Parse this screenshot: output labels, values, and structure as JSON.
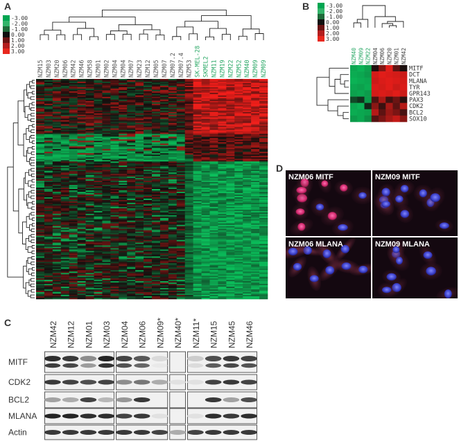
{
  "panels": {
    "A": {
      "letter": "A",
      "legend": {
        "labels": [
          "-3.00",
          "-2.00",
          "-1.00",
          "0.00",
          "1.00",
          "2.00",
          "3.00"
        ],
        "colors": [
          "#00a651",
          "#33b46a",
          "#1f6b3a",
          "#101010",
          "#6b1414",
          "#b41e1e",
          "#e8281e"
        ]
      },
      "columns_black": [
        "NZM15",
        "NZM03",
        "NZM20",
        "NZM06",
        "NZM42",
        "NZM46",
        "NZM58",
        "NZM01",
        "NZM02",
        "NZM04",
        "NZM04",
        "NZM07",
        "NZM23",
        "NZM12",
        "NZM05",
        "NZM07",
        "NZM07.2",
        "NZM07.4",
        "NZM53"
      ],
      "columns_green": [
        "SK-MEL-28",
        "SKMEL2",
        "NZM11",
        "NZM19",
        "NZM22",
        "NZM52",
        "NZM40",
        "NZM09",
        "NZM09"
      ]
    },
    "B": {
      "letter": "B",
      "legend": {
        "labels": [
          "-3.00",
          "-2.00",
          "-1.00",
          "0.00",
          "1.00",
          "2.00",
          "3.00"
        ],
        "colors": [
          "#00a651",
          "#33b46a",
          "#1f6b3a",
          "#101010",
          "#6b1414",
          "#b41e1e",
          "#e8281e"
        ]
      },
      "columns_green": [
        "NZM40",
        "NZM09",
        "NZM22"
      ],
      "columns_black": [
        "NZM04",
        "NZM06",
        "NZM20",
        "NZM01",
        "NZM42"
      ],
      "genes": [
        "MITF",
        "DCT",
        "MLANA",
        "TYR",
        "GPR143",
        "PAX3",
        "CDK2",
        "BCL2",
        "SOX10"
      ]
    },
    "C": {
      "letter": "C",
      "lanes": [
        "NZM42",
        "NZM12",
        "NZM01",
        "NZM03",
        "NZM04",
        "NZM06",
        "NZM09*",
        "NZM40*",
        "NZM11*",
        "NZM15",
        "NZM45",
        "NZM46"
      ],
      "proteins": [
        "MITF",
        "CDK2",
        "BCL2",
        "MLANA",
        "Actin"
      ],
      "band_intensity": [
        [
          0.9,
          0.85,
          0.45,
          0.95,
          0.8,
          0.7,
          0.08,
          0.0,
          0.15,
          0.75,
          0.85,
          0.8
        ],
        [
          0.85,
          0.8,
          0.75,
          0.8,
          0.45,
          0.55,
          0.3,
          0.05,
          0.05,
          0.8,
          0.85,
          0.8
        ],
        [
          0.35,
          0.3,
          0.8,
          0.25,
          0.4,
          0.85,
          0.0,
          0.0,
          0.0,
          0.85,
          0.35,
          0.75
        ],
        [
          0.95,
          0.95,
          0.9,
          0.9,
          0.8,
          0.85,
          0.05,
          0.0,
          0.05,
          0.9,
          0.85,
          0.9
        ],
        [
          0.85,
          0.85,
          0.85,
          0.85,
          0.85,
          0.85,
          0.8,
          0.3,
          0.8,
          0.85,
          0.85,
          0.85
        ]
      ]
    },
    "D": {
      "letter": "D",
      "images": [
        {
          "label": "NZM06 MITF"
        },
        {
          "label": "NZM09 MITF"
        },
        {
          "label": "NZM06 MLANA"
        },
        {
          "label": "NZM09 MLANA"
        }
      ]
    }
  }
}
